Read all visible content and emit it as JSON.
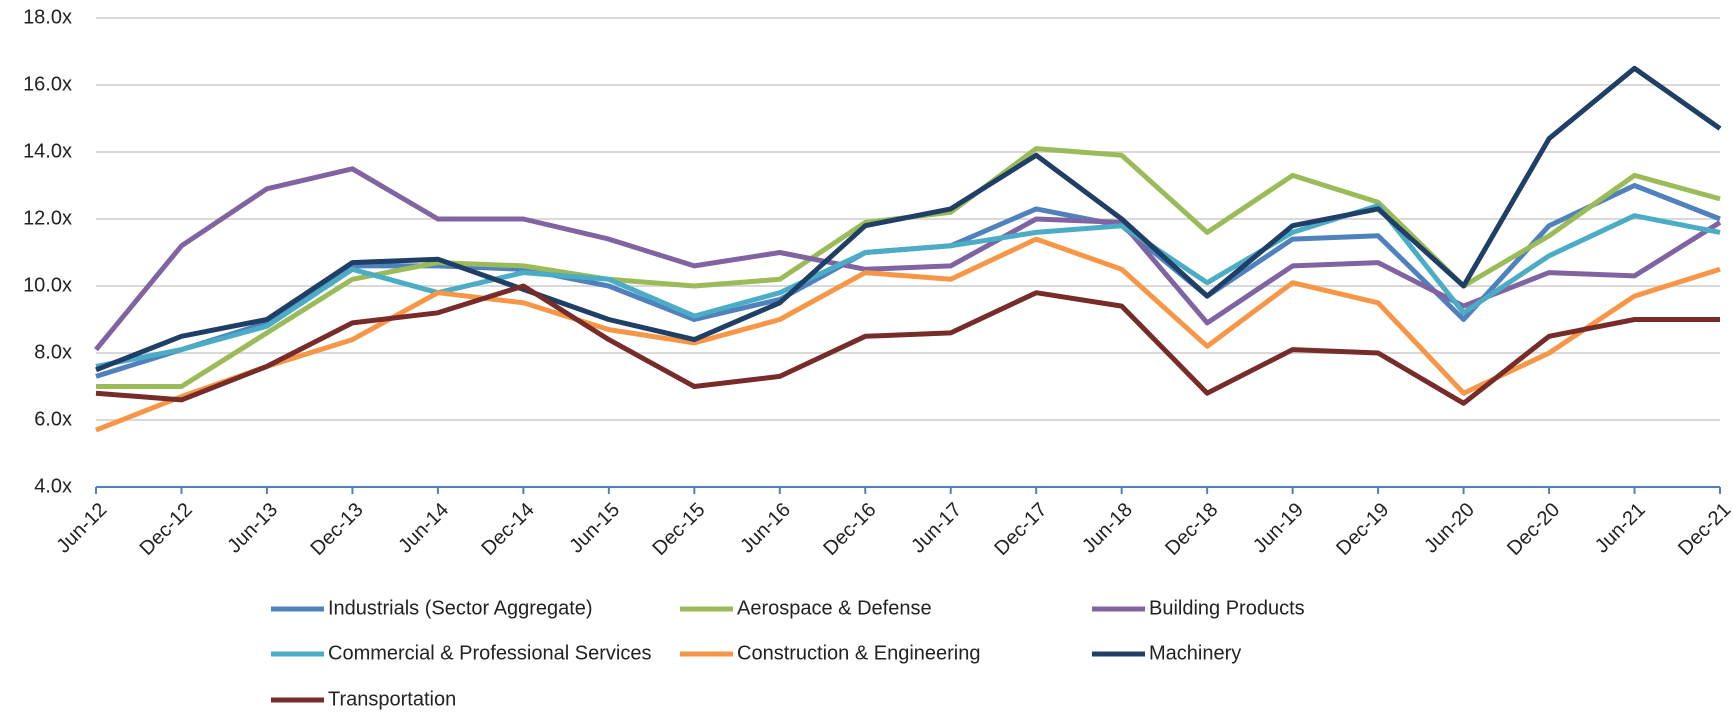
{
  "chart_data": {
    "type": "line",
    "categories": [
      "Jun-12",
      "Dec-12",
      "Jun-13",
      "Dec-13",
      "Jun-14",
      "Dec-14",
      "Jun-15",
      "Dec-15",
      "Jun-16",
      "Dec-16",
      "Jun-17",
      "Dec-17",
      "Jun-18",
      "Dec-18",
      "Jun-19",
      "Dec-19",
      "Jun-20",
      "Dec-20",
      "Jun-21",
      "Dec-21"
    ],
    "series": [
      {
        "name": "Industrials (Sector Aggregate)",
        "color": "#4f81bd",
        "values": [
          7.3,
          8.1,
          8.9,
          10.6,
          10.6,
          10.5,
          10.0,
          9.0,
          9.6,
          11.0,
          11.2,
          12.3,
          11.8,
          9.7,
          11.4,
          11.5,
          9.0,
          11.8,
          13.0,
          12.0
        ]
      },
      {
        "name": "Aerospace & Defense",
        "color": "#9bbb59",
        "values": [
          7.0,
          7.0,
          8.6,
          10.2,
          10.7,
          10.6,
          10.2,
          10.0,
          10.2,
          11.9,
          12.2,
          14.1,
          13.9,
          11.6,
          13.3,
          12.5,
          10.0,
          11.5,
          13.3,
          12.6
        ]
      },
      {
        "name": "Building Products",
        "color": "#8064a2",
        "values": [
          8.1,
          11.2,
          12.9,
          13.5,
          12.0,
          12.0,
          11.4,
          10.6,
          11.0,
          10.5,
          10.6,
          12.0,
          11.9,
          8.9,
          10.6,
          10.7,
          9.4,
          10.4,
          10.3,
          11.9
        ]
      },
      {
        "name": "Commercial & Professional Services",
        "color": "#4bacc6",
        "values": [
          7.6,
          8.1,
          8.8,
          10.5,
          9.8,
          10.4,
          10.2,
          9.1,
          9.8,
          11.0,
          11.2,
          11.6,
          11.8,
          10.1,
          11.6,
          12.4,
          9.2,
          10.9,
          12.1,
          11.6
        ]
      },
      {
        "name": "Construction & Engineering",
        "color": "#f79646",
        "values": [
          5.7,
          6.7,
          7.6,
          8.4,
          9.8,
          9.5,
          8.7,
          8.3,
          9.0,
          10.4,
          10.2,
          11.4,
          10.5,
          8.2,
          10.1,
          9.5,
          6.8,
          8.0,
          9.7,
          10.5
        ]
      },
      {
        "name": "Machinery",
        "color": "#1f3f66",
        "values": [
          7.5,
          8.5,
          9.0,
          10.7,
          10.8,
          9.9,
          9.0,
          8.4,
          9.5,
          11.8,
          12.3,
          13.9,
          12.0,
          9.7,
          11.8,
          12.3,
          10.0,
          14.4,
          16.5,
          14.7
        ]
      },
      {
        "name": "Transportation",
        "color": "#772c2a",
        "values": [
          6.8,
          6.6,
          7.6,
          8.9,
          9.2,
          10.0,
          8.4,
          7.0,
          7.3,
          8.5,
          8.6,
          9.8,
          9.4,
          6.8,
          8.1,
          8.0,
          6.5,
          8.5,
          9.0,
          9.0
        ]
      }
    ],
    "ylim": [
      4,
      18
    ],
    "yticks": [
      {
        "value": 4,
        "label": "4.0x"
      },
      {
        "value": 6,
        "label": "6.0x"
      },
      {
        "value": 8,
        "label": "8.0x"
      },
      {
        "value": 10,
        "label": "10.0x"
      },
      {
        "value": 12,
        "label": "12.0x"
      },
      {
        "value": 14,
        "label": "14.0x"
      },
      {
        "value": 16,
        "label": "16.0x"
      },
      {
        "value": 18,
        "label": "18.0x"
      }
    ],
    "grid": true
  }
}
